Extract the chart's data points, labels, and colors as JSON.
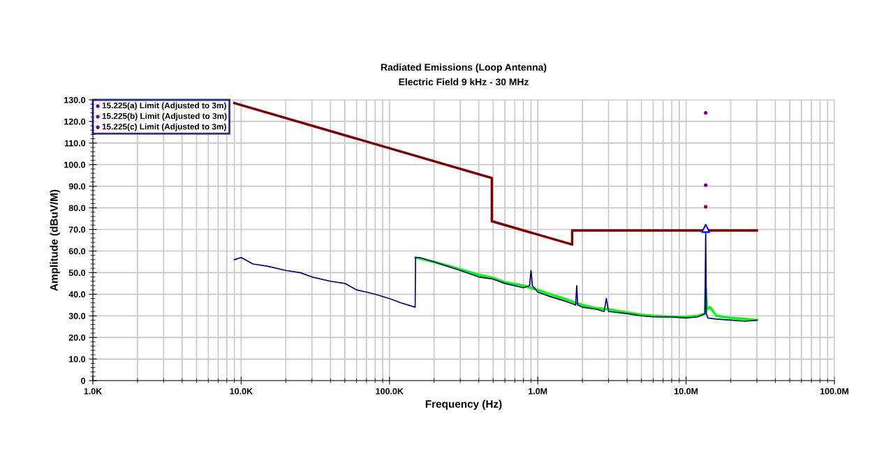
{
  "chart_data": {
    "type": "line",
    "subtitle": "Radiated Emissions (Loop Antenna)\nElectric Field 9 kHz - 30 MHz",
    "xlabel": "Frequency (Hz)",
    "ylabel": "Amplitude (dBuV/M)",
    "log": "x",
    "grid": true,
    "legend": "top left",
    "xlim": [
      1000,
      100000000
    ],
    "xticks": [
      {
        "value": 1000,
        "label": "1.0K"
      },
      {
        "value": 10000,
        "label": "10.0K"
      },
      {
        "value": 100000,
        "label": "100.0K"
      },
      {
        "value": 1000000,
        "label": "1.0M"
      },
      {
        "value": 10000000,
        "label": "10.0M"
      },
      {
        "value": 100000000,
        "label": "100.0M"
      }
    ],
    "ylim": [
      0,
      130
    ],
    "yticks": [
      0,
      {
        "value": 10,
        "label": "10.0"
      },
      {
        "value": 20,
        "label": "20.0"
      },
      {
        "value": 30,
        "label": "30.0"
      },
      {
        "value": 40,
        "label": "40.0"
      },
      {
        "value": 50,
        "label": "50.0"
      },
      {
        "value": 60,
        "label": "60.0"
      },
      {
        "value": 70,
        "label": "70.0"
      },
      {
        "value": 80,
        "label": "80.0"
      },
      {
        "value": 90,
        "label": "90.0"
      },
      {
        "value": 100,
        "label": "100.0"
      },
      {
        "value": 110,
        "label": "110.0"
      },
      {
        "value": 120,
        "label": "120.0"
      },
      {
        "value": 130,
        "label": "130.0"
      }
    ],
    "series": [
      {
        "color": "#00ff00",
        "x": [
          150000,
          200000,
          300000,
          400000,
          500000,
          600000,
          800000,
          1000000,
          1200000,
          1500000,
          1800000,
          2000000,
          2500000,
          3000000,
          4000000,
          5000000,
          6000000,
          8000000,
          10000000,
          12000000,
          13400000,
          13560000,
          13800000,
          14500000,
          16000000,
          20000000,
          25000000,
          30000000
        ],
        "values": [
          57,
          55,
          51.5,
          49,
          47.5,
          45.5,
          44,
          42,
          40,
          38,
          36,
          35,
          33.5,
          33,
          31.5,
          30.5,
          30,
          29.5,
          29.5,
          30,
          31,
          43,
          33,
          34,
          30,
          29,
          28.5,
          28
        ]
      },
      {
        "color": "#000080",
        "x": [
          9000,
          10000,
          12000,
          15000,
          20000,
          25000,
          30000,
          40000,
          50000,
          60000,
          70000,
          80000,
          100000,
          120000,
          149000,
          150000,
          160000,
          200000,
          300000,
          400000,
          500000,
          600000,
          800000,
          880000,
          900000,
          920000,
          1000000,
          1200000,
          1500000,
          1800000,
          1830000,
          1860000,
          2000000,
          2500000,
          2800000,
          2900000,
          3000000,
          4000000,
          5000000,
          6000000,
          8000000,
          10000000,
          12000000,
          13400000,
          13560000,
          13700000,
          14000000,
          16000000,
          20000000,
          25000000,
          30000000
        ],
        "values": [
          56,
          57,
          54,
          53,
          51,
          50,
          48,
          46,
          45,
          42,
          41,
          40,
          38,
          36,
          34,
          57,
          57,
          55,
          51,
          48,
          47,
          45,
          43,
          44,
          51,
          44,
          41,
          39,
          37,
          35,
          44,
          35,
          34,
          33,
          32,
          38,
          32,
          31,
          30,
          29.5,
          29.5,
          29,
          29.5,
          31,
          70,
          31,
          29,
          28.5,
          28,
          27.5,
          28
        ]
      },
      {
        "color": "#800000",
        "x": [
          9000,
          490000,
          490000,
          1705000,
          1705000,
          30000000
        ],
        "values": [
          128.5,
          93.8,
          73.8,
          63,
          69.5,
          69.5
        ]
      },
      {
        "type": "scatter",
        "name": "15.225(a) Limit (Adjusted to 3m)",
        "color": "#800080",
        "marker": "circle",
        "x": [
          13560000
        ],
        "values": [
          124
        ]
      },
      {
        "type": "scatter",
        "name": "15.225(b) Limit (Adjusted to 3m)",
        "color": "#800080",
        "marker": "circle",
        "x": [
          13560000
        ],
        "values": [
          90.5
        ]
      },
      {
        "type": "scatter",
        "name": "15.225(c) Limit (Adjusted to 3m)",
        "color": "#800080",
        "marker": "circle",
        "x": [
          13560000
        ],
        "values": [
          80.5
        ]
      },
      {
        "type": "scatter",
        "color": "#0000ff",
        "marker": "triangle",
        "x": [
          13560000
        ],
        "values": [
          70.5
        ]
      }
    ]
  }
}
